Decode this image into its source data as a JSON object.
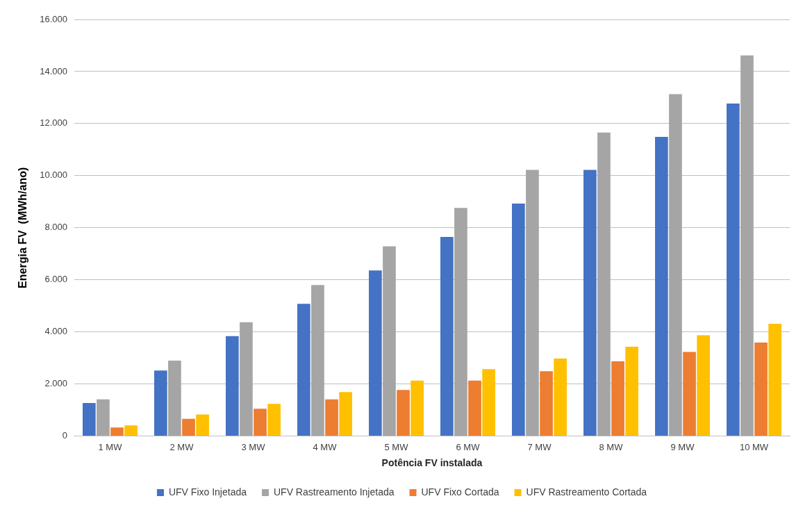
{
  "chart_data": {
    "type": "bar",
    "xlabel": "Potência FV instalada",
    "ylabel": "Energia FV  (MWh/ano)",
    "categories": [
      "1 MW",
      "2 MW",
      "3 MW",
      "4 MW",
      "5 MW",
      "6 MW",
      "7 MW",
      "8 MW",
      "9 MW",
      "10 MW"
    ],
    "series": [
      {
        "name": "UFV Fixo Injetada",
        "color": "#4472c4",
        "values": [
          1270,
          2520,
          3840,
          5080,
          6360,
          7650,
          8930,
          10220,
          11490,
          12770
        ]
      },
      {
        "name": "UFV Rastreamento Injetada",
        "color": "#a5a5a5",
        "values": [
          1410,
          2900,
          4370,
          5800,
          7290,
          8760,
          10220,
          11660,
          13130,
          14620
        ]
      },
      {
        "name": "UFV Fixo Cortada",
        "color": "#ed7d31",
        "values": [
          330,
          660,
          1050,
          1410,
          1770,
          2130,
          2490,
          2870,
          3230,
          3590
        ]
      },
      {
        "name": "UFV Rastreamento Cortada",
        "color": "#ffc000",
        "values": [
          410,
          830,
          1240,
          1690,
          2130,
          2570,
          2980,
          3430,
          3870,
          4310
        ]
      }
    ],
    "ylim": [
      0,
      16000
    ],
    "yticks": [
      {
        "value": 0,
        "label": "0"
      },
      {
        "value": 2000,
        "label": "2.000"
      },
      {
        "value": 4000,
        "label": "4.000"
      },
      {
        "value": 6000,
        "label": "6.000"
      },
      {
        "value": 8000,
        "label": "8.000"
      },
      {
        "value": 10000,
        "label": "10.000"
      },
      {
        "value": 12000,
        "label": "12.000"
      },
      {
        "value": 14000,
        "label": "14.000"
      },
      {
        "value": 16000,
        "label": "16.000"
      }
    ],
    "grid": "y",
    "legend": "bottom"
  }
}
